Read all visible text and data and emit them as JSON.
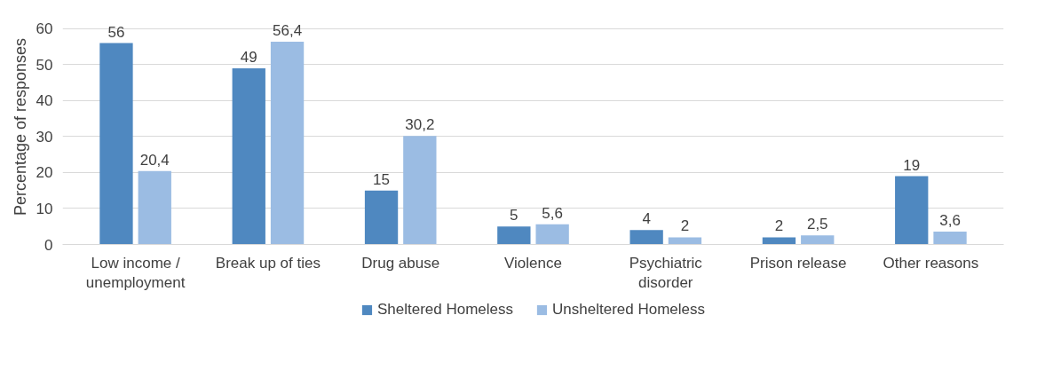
{
  "chart_data": {
    "type": "bar",
    "ylabel": "Percentage of responses",
    "categories": [
      "Low income /\nunemployment",
      "Break up of ties",
      "Drug abuse",
      "Violence",
      "Psychiatric\ndisorder",
      "Prison release",
      "Other reasons"
    ],
    "series": [
      {
        "name": "Sheltered Homeless",
        "color": "#4f88c0",
        "values": [
          56,
          49,
          15,
          5,
          4,
          2,
          19
        ],
        "value_labels": [
          "56",
          "49",
          "15",
          "5",
          "4",
          "2",
          "19"
        ]
      },
      {
        "name": "Unsheltered Homeless",
        "color": "#9bbce3",
        "values": [
          20.4,
          56.4,
          30.2,
          5.6,
          2,
          2.5,
          3.6
        ],
        "value_labels": [
          "20,4",
          "56,4",
          "30,2",
          "5,6",
          "2",
          "2,5",
          "3,6"
        ]
      }
    ],
    "ylim": [
      0,
      60
    ],
    "yticks": [
      0,
      10,
      20,
      30,
      40,
      50,
      60
    ],
    "grid": "y",
    "legend": "bottom"
  }
}
